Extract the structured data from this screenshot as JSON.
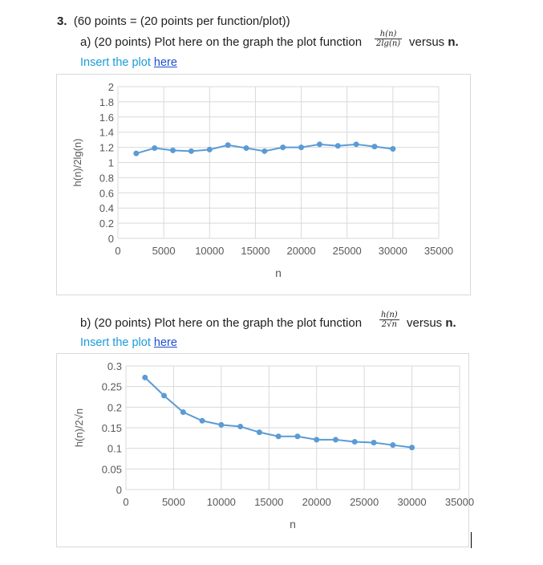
{
  "question": {
    "number": "3.",
    "points": "(60 points = (20 points per function/plot))"
  },
  "part_a": {
    "prefix": "a) (20 points) Plot here on the graph the plot function",
    "frac_num": "h(n)",
    "frac_den": "2lg(n)",
    "suffix_word": "versus ",
    "suffix_var": "n",
    "suffix_end": ".",
    "insert_text": "Insert the plot ",
    "insert_link": "here"
  },
  "part_b": {
    "prefix": "b) (20 points) Plot here on the graph the plot function",
    "frac_num": "h(n)",
    "frac_den": "2√n",
    "suffix_word": "versus ",
    "suffix_var": "n",
    "suffix_end": ".",
    "insert_text": "Insert the plot ",
    "insert_link": "here"
  },
  "colors": {
    "series": "#5b9bd5",
    "grid": "#d9d9d9",
    "axis_text": "#595959",
    "link_text": "#1a9bd7"
  },
  "chart_data": [
    {
      "type": "line",
      "title": "",
      "xlabel": "n",
      "ylabel": "h(n)/2lg(n)",
      "xlim": [
        0,
        35000
      ],
      "ylim": [
        0,
        2
      ],
      "xticks": [
        0,
        5000,
        10000,
        15000,
        20000,
        25000,
        30000,
        35000
      ],
      "xtick_labels": [
        "0",
        "5000",
        "10000",
        "15000",
        "20000",
        "25000",
        "30000",
        "35000"
      ],
      "yticks": [
        0,
        0.2,
        0.4,
        0.6,
        0.8,
        1,
        1.2,
        1.4,
        1.6,
        1.8,
        2
      ],
      "ytick_labels": [
        "0",
        "0.2",
        "0.4",
        "0.6",
        "0.8",
        "1",
        "1.2",
        "1.4",
        "1.6",
        "1.8",
        "2"
      ],
      "grid": true,
      "legend": "none",
      "series": [
        {
          "x": [
            2000,
            4000,
            6000,
            8000,
            10000,
            12000,
            14000,
            16000,
            18000,
            20000,
            22000,
            24000,
            26000,
            28000,
            30000
          ],
          "y": [
            1.12,
            1.19,
            1.16,
            1.15,
            1.17,
            1.23,
            1.19,
            1.15,
            1.2,
            1.2,
            1.24,
            1.22,
            1.24,
            1.21,
            1.18
          ]
        }
      ]
    },
    {
      "type": "line",
      "title": "",
      "xlabel": "n",
      "ylabel": "h(n)/2√n",
      "xlim": [
        0,
        35000
      ],
      "ylim": [
        0,
        0.3
      ],
      "xticks": [
        0,
        5000,
        10000,
        15000,
        20000,
        25000,
        30000,
        35000
      ],
      "xtick_labels": [
        "0",
        "5000",
        "10000",
        "15000",
        "20000",
        "25000",
        "30000",
        "35000"
      ],
      "yticks": [
        0,
        0.05,
        0.1,
        0.15,
        0.2,
        0.25,
        0.3
      ],
      "ytick_labels": [
        "0",
        "0.05",
        "0.1",
        "0.15",
        "0.2",
        "0.25",
        "0.3"
      ],
      "grid": true,
      "legend": "none",
      "series": [
        {
          "x": [
            2000,
            4000,
            6000,
            8000,
            10000,
            12000,
            14000,
            16000,
            18000,
            20000,
            22000,
            24000,
            26000,
            28000,
            30000
          ],
          "y": [
            0.272,
            0.228,
            0.188,
            0.167,
            0.157,
            0.153,
            0.139,
            0.129,
            0.129,
            0.121,
            0.121,
            0.116,
            0.114,
            0.108,
            0.102
          ]
        }
      ]
    }
  ]
}
